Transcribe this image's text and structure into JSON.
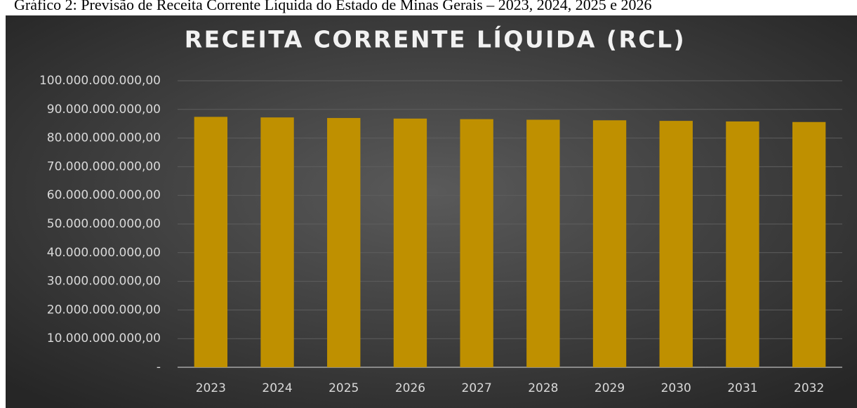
{
  "caption": "Gráfico 2: Previsão de Receita Corrente Líquida do Estado de Minas Gerais – 2023, 2024, 2025 e 2026",
  "chart_data": {
    "type": "bar",
    "title": "RECEITA CORRENTE LÍQUIDA (RCL)",
    "categories": [
      "2023",
      "2024",
      "2025",
      "2026",
      "2027",
      "2028",
      "2029",
      "2030",
      "2031",
      "2032"
    ],
    "values": [
      87400000000,
      87200000000,
      87000000000,
      86800000000,
      86600000000,
      86400000000,
      86200000000,
      86000000000,
      85800000000,
      85600000000
    ],
    "color": "#bf9000",
    "ylim": [
      0,
      100000000000
    ],
    "yticks": [
      {
        "value": 0,
        "label": "-"
      },
      {
        "value": 10000000000,
        "label": "10.000.000.000,00"
      },
      {
        "value": 20000000000,
        "label": "20.000.000.000,00"
      },
      {
        "value": 30000000000,
        "label": "30.000.000.000,00"
      },
      {
        "value": 40000000000,
        "label": "40.000.000.000,00"
      },
      {
        "value": 50000000000,
        "label": "50.000.000.000,00"
      },
      {
        "value": 60000000000,
        "label": "60.000.000.000,00"
      },
      {
        "value": 70000000000,
        "label": "70.000.000.000,00"
      },
      {
        "value": 80000000000,
        "label": "80.000.000.000,00"
      },
      {
        "value": 90000000000,
        "label": "90.000.000.000,00"
      },
      {
        "value": 100000000000,
        "label": "100.000.000.000,00"
      }
    ],
    "grid": true
  }
}
